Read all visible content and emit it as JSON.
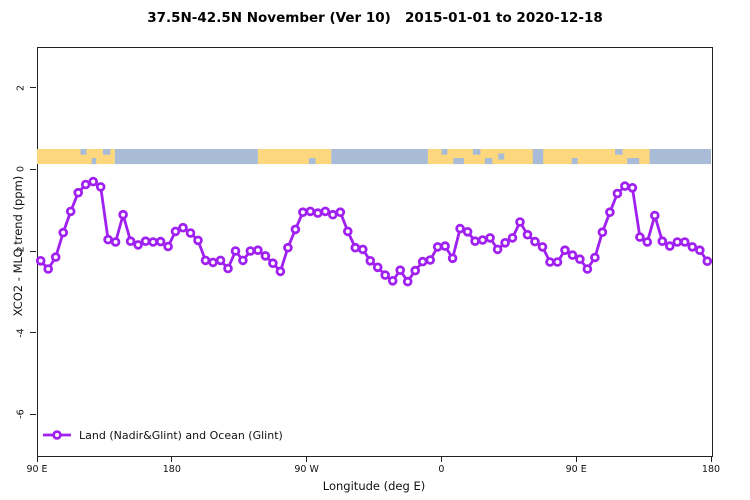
{
  "title": "37.5N-42.5N November (Ver 10)   2015-01-01 to 2020-12-18",
  "x_axis": {
    "label": "Longitude (deg E)",
    "range": [
      90,
      540
    ],
    "ticks": [
      {
        "long": 90,
        "label": "90 E"
      },
      {
        "long": 180,
        "label": "180"
      },
      {
        "long": 270,
        "label": "90 W"
      },
      {
        "long": 360,
        "label": "0"
      },
      {
        "long": 450,
        "label": "90 E"
      },
      {
        "long": 540,
        "label": "180"
      }
    ]
  },
  "y_axis": {
    "label": "XCO2 - MLO trend (ppm)",
    "range": [
      -7,
      3
    ],
    "ticks": [
      {
        "value": 2,
        "label": "2"
      },
      {
        "value": 0,
        "label": "0"
      },
      {
        "value": -2,
        "label": "-2"
      },
      {
        "value": -4,
        "label": "-4"
      },
      {
        "value": -6,
        "label": "-6"
      }
    ]
  },
  "legend": {
    "label": "Land (Nadir&Glint) and Ocean (Glint)"
  },
  "colors": {
    "series": "#A020F0",
    "land": "#FCD77E",
    "ocean": "#A8BBD7",
    "frame": "#222222"
  },
  "surface_band": {
    "y_range_ppm": [
      0.13,
      0.5
    ],
    "segments": [
      {
        "from": 90,
        "to": 142,
        "type": "land"
      },
      {
        "from": 142,
        "to": 237.5,
        "type": "ocean"
      },
      {
        "from": 237.5,
        "to": 286.5,
        "type": "land"
      },
      {
        "from": 286.5,
        "to": 351,
        "type": "ocean"
      },
      {
        "from": 351,
        "to": 499,
        "type": "land"
      },
      {
        "from": 499,
        "to": 540,
        "type": "ocean"
      }
    ],
    "speckles": [
      {
        "from": 119,
        "to": 123,
        "pos": "top"
      },
      {
        "from": 126.5,
        "to": 129.5,
        "pos": "bottom"
      },
      {
        "from": 134,
        "to": 139,
        "pos": "top"
      },
      {
        "from": 271.5,
        "to": 276,
        "pos": "bottom"
      },
      {
        "from": 360,
        "to": 364,
        "pos": "top"
      },
      {
        "from": 368,
        "to": 375,
        "pos": "bottom"
      },
      {
        "from": 381,
        "to": 386,
        "pos": "top"
      },
      {
        "from": 389,
        "to": 394,
        "pos": "bottom"
      },
      {
        "from": 398,
        "to": 402,
        "pos": "mid"
      },
      {
        "from": 421,
        "to": 428,
        "pos": "full"
      },
      {
        "from": 447,
        "to": 451,
        "pos": "bottom"
      },
      {
        "from": 476,
        "to": 481,
        "pos": "top"
      },
      {
        "from": 484,
        "to": 492,
        "pos": "bottom"
      }
    ]
  },
  "chart_data": {
    "type": "line",
    "title": "37.5N-42.5N November (Ver 10)   2015-01-01 to 2020-12-18",
    "xlabel": "Longitude (deg E)",
    "ylabel": "XCO2 - MLO trend (ppm)",
    "xlim": [
      90,
      540
    ],
    "ylim": [
      -7,
      3
    ],
    "grid": false,
    "legend_position": "bottom-left",
    "series_name": "Land (Nadir&Glint) and Ocean (Glint)",
    "x_longitude": [
      92.5,
      97.5,
      102.5,
      107.5,
      112.5,
      117.5,
      122.5,
      127.5,
      132.5,
      137.5,
      142.5,
      147.5,
      152.5,
      157.5,
      162.5,
      167.5,
      172.5,
      177.5,
      182.5,
      187.5,
      192.5,
      197.5,
      202.5,
      207.5,
      212.5,
      217.5,
      222.5,
      227.5,
      232.5,
      237.5,
      242.5,
      247.5,
      252.5,
      257.5,
      262.5,
      267.5,
      272.5,
      277.5,
      282.5,
      287.5,
      292.5,
      297.5,
      302.5,
      307.5,
      312.5,
      317.5,
      322.5,
      327.5,
      332.5,
      337.5,
      342.5,
      347.5,
      352.5,
      357.5,
      362.5,
      367.5,
      372.5,
      377.5,
      382.5,
      387.5,
      392.5,
      397.5,
      402.5,
      407.5,
      412.5,
      417.5,
      422.5,
      427.5,
      432.5,
      437.5,
      442.5,
      447.5,
      452.5,
      457.5,
      462.5,
      467.5,
      472.5,
      477.5,
      482.5,
      487.5,
      492.5,
      497.5,
      502.5,
      507.5,
      512.5,
      517.5,
      522.5,
      527.5,
      532.5,
      537.5
    ],
    "values": [
      -2.24,
      -2.44,
      -2.15,
      -1.55,
      -1.03,
      -0.57,
      -0.37,
      -0.3,
      -0.43,
      -1.72,
      -1.78,
      -1.11,
      -1.76,
      -1.85,
      -1.76,
      -1.78,
      -1.77,
      -1.89,
      -1.52,
      -1.43,
      -1.56,
      -1.74,
      -2.23,
      -2.28,
      -2.23,
      -2.43,
      -2.0,
      -2.23,
      -2.0,
      -1.98,
      -2.12,
      -2.3,
      -2.5,
      -1.92,
      -1.47,
      -1.05,
      -1.03,
      -1.07,
      -1.03,
      -1.11,
      -1.05,
      -1.52,
      -1.92,
      -1.96,
      -2.24,
      -2.4,
      -2.59,
      -2.73,
      -2.47,
      -2.75,
      -2.48,
      -2.26,
      -2.22,
      -1.9,
      -1.88,
      -2.18,
      -1.45,
      -1.53,
      -1.76,
      -1.73,
      -1.68,
      -1.96,
      -1.8,
      -1.68,
      -1.29,
      -1.6,
      -1.77,
      -1.9,
      -2.27,
      -2.27,
      -1.98,
      -2.1,
      -2.2,
      -2.44,
      -2.16,
      -1.54,
      -1.05,
      -0.59,
      -0.41,
      -0.45,
      -1.66,
      -1.78,
      -1.13,
      -1.76,
      -1.88,
      -1.78,
      -1.78,
      -1.9,
      -1.98,
      -2.25
    ]
  }
}
